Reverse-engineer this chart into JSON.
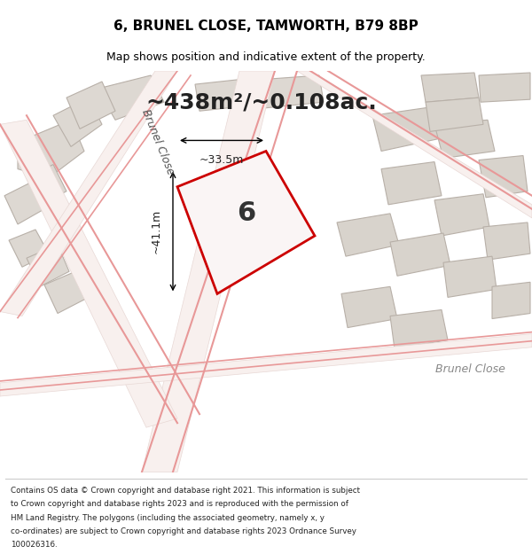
{
  "title": "6, BRUNEL CLOSE, TAMWORTH, B79 8BP",
  "subtitle": "Map shows position and indicative extent of the property.",
  "area_text": "~438m²/~0.108ac.",
  "label_6": "6",
  "dim_width": "~33.5m",
  "dim_height": "~41.1m",
  "road_label_diag": "Brunel Close",
  "road_label_br": "Brunel Close",
  "footer_lines": [
    "Contains OS data © Crown copyright and database right 2021. This information is subject",
    "to Crown copyright and database rights 2023 and is reproduced with the permission of",
    "HM Land Registry. The polygons (including the associated geometry, namely x, y",
    "co-ordinates) are subject to Crown copyright and database rights 2023 Ordnance Survey",
    "100026316."
  ],
  "map_bg": "#ede8e3",
  "bfill": "#ddd8d2",
  "bedge": "#b8b0a8",
  "rfill_right": "#d8d3cc",
  "road_fill": "#f8f0ee",
  "road_edge": "#e8d8d5",
  "road_line_color": "#e89898",
  "prop_fill": "#faf5f5",
  "prop_edge": "#cc0000",
  "title_fontsize": 11,
  "subtitle_fontsize": 9,
  "area_fontsize": 18,
  "label_fontsize": 22,
  "dim_fontsize": 9,
  "road_fontsize": 9,
  "footer_fontsize": 6.3
}
